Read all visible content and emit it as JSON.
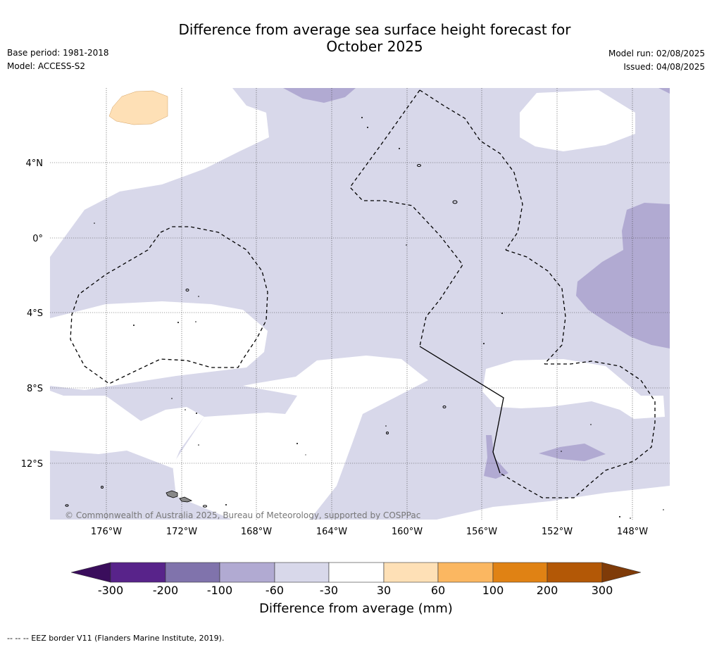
{
  "header": {
    "title_line1": "Difference from average sea surface height forecast for",
    "title_line2": "October 2025",
    "base_period": "Base period: 1981-2018",
    "model": "Model: ACCESS-S2",
    "model_run": "Model run: 02/08/2025",
    "issued": "Issued: 04/08/2025"
  },
  "map": {
    "lon_range": [
      "178°W",
      "146°W"
    ],
    "lat_range": [
      "15°S",
      "8°N"
    ],
    "lat_ticks": [
      "4°N",
      "0°",
      "4°S",
      "8°S",
      "12°S"
    ],
    "lon_ticks": [
      "176°W",
      "172°W",
      "168°W",
      "164°W",
      "160°W",
      "156°W",
      "152°W",
      "148°W"
    ],
    "gridlines": "dotted",
    "copyright": "© Commonwealth of Australia 2025, Bureau of Meteorology, supported by COSPPac",
    "legend_border_note": "--  --  -- EEZ border V11 (Flanders Marine Institute, 2019)."
  },
  "colorbar": {
    "label": "Difference from average (mm)",
    "ticks": [
      "-300",
      "-200",
      "-100",
      "-60",
      "-30",
      "30",
      "60",
      "100",
      "200",
      "300"
    ],
    "colors": [
      "#3a0d5c",
      "#58238a",
      "#8073ac",
      "#b1aad2",
      "#d8d8ea",
      "#ffffff",
      "#fee0b6",
      "#fbb761",
      "#e08214",
      "#b35806",
      "#7f3b08"
    ]
  }
}
